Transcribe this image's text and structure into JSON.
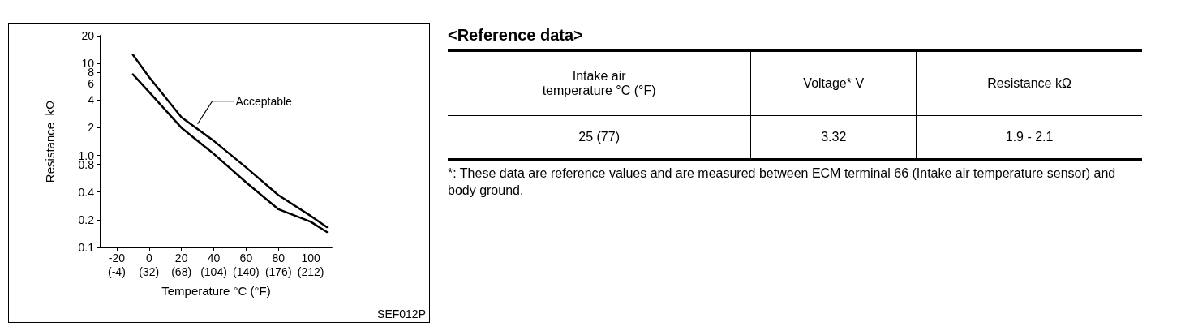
{
  "chart_data": [
    {
      "type": "line",
      "xlabel": "Temperature °C (°F)",
      "ylabel": "Resistance  kΩ",
      "log": "y",
      "grid": false,
      "marker": "none",
      "line_style": "solid",
      "xlim": [
        -30,
        113
      ],
      "ylim": [
        0.1,
        20
      ],
      "xticks": [
        -20,
        0,
        20,
        40,
        60,
        80,
        100
      ],
      "x2lim": [
        -22,
        235.4
      ],
      "x2ticks": [
        {
          "value": -4,
          "label": "(-4)"
        },
        {
          "value": 32,
          "label": "(32)"
        },
        {
          "value": 68,
          "label": "(68)"
        },
        {
          "value": 104,
          "label": "(104)"
        },
        {
          "value": 140,
          "label": "(140)"
        },
        {
          "value": 176,
          "label": "(176)"
        },
        {
          "value": 212,
          "label": "(212)"
        }
      ],
      "yticks": [
        0.1,
        0.2,
        0.4,
        0.8,
        {
          "value": 1,
          "label": "1.0"
        },
        2,
        4,
        6,
        8,
        10,
        20
      ],
      "series": [
        {
          "color": "#000000",
          "x": [
            -10,
            0,
            20,
            40,
            60,
            80,
            100,
            110
          ],
          "values": [
            12.4,
            7.1,
            2.6,
            1.44,
            0.74,
            0.37,
            0.22,
            0.166
          ]
        },
        {
          "color": "#000000",
          "x": [
            -10,
            0,
            20,
            40,
            60,
            80,
            100,
            110
          ],
          "values": [
            7.6,
            4.9,
            2.0,
            1.04,
            0.51,
            0.26,
            0.19,
            0.147
          ]
        }
      ],
      "annotations": [
        {
          "text": "Acceptable",
          "x": 30,
          "y": 2.2
        },
        "SEF012P"
      ]
    },
    {
      "type": "other",
      "title": "<Reference data>",
      "annotations": [
        "Intake air\ntemperature   °C (°F)",
        "Voltage*   V",
        "Resistance   kΩ",
        "25 (77)",
        "3.32",
        "1.9 - 2.1",
        "*: These data are reference values and are measured between ECM terminal 66 (Intake air temperature sensor) and body ground."
      ]
    }
  ]
}
